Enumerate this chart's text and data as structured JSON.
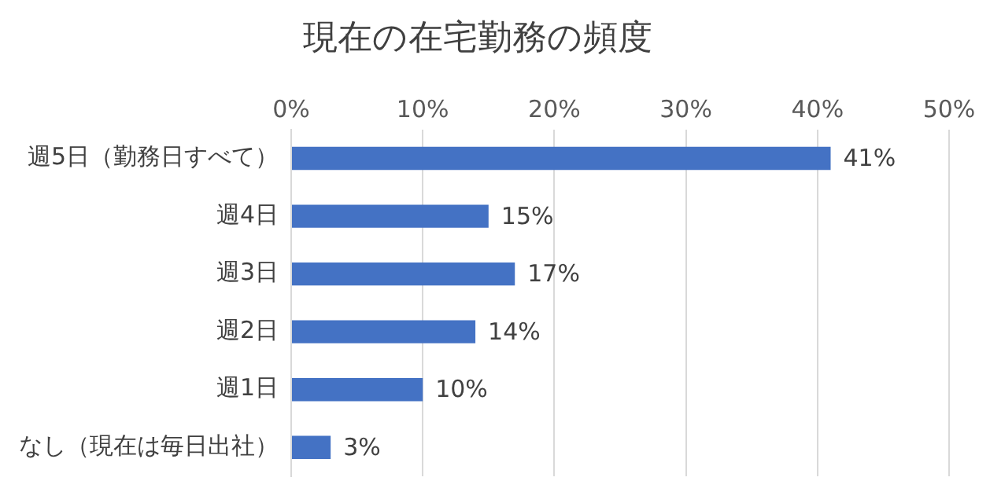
{
  "chart_data": {
    "type": "bar",
    "orientation": "horizontal",
    "title": "現在の在宅勤務の頻度",
    "categories": [
      "週5日（勤務日すべて）",
      "週4日",
      "週3日",
      "週2日",
      "週1日",
      "なし（現在は毎日出社）"
    ],
    "values": [
      41,
      15,
      17,
      14,
      10,
      3
    ],
    "value_labels": [
      "41%",
      "15%",
      "17%",
      "14%",
      "10%",
      "3%"
    ],
    "color": "#4472c4",
    "xlim": [
      0,
      50
    ],
    "xticks": [
      {
        "value": 0,
        "label": "0%"
      },
      {
        "value": 10,
        "label": "10%"
      },
      {
        "value": 20,
        "label": "20%"
      },
      {
        "value": 30,
        "label": "30%"
      },
      {
        "value": 40,
        "label": "40%"
      },
      {
        "value": 50,
        "label": "50%"
      }
    ],
    "grid": "x",
    "legend": false
  }
}
